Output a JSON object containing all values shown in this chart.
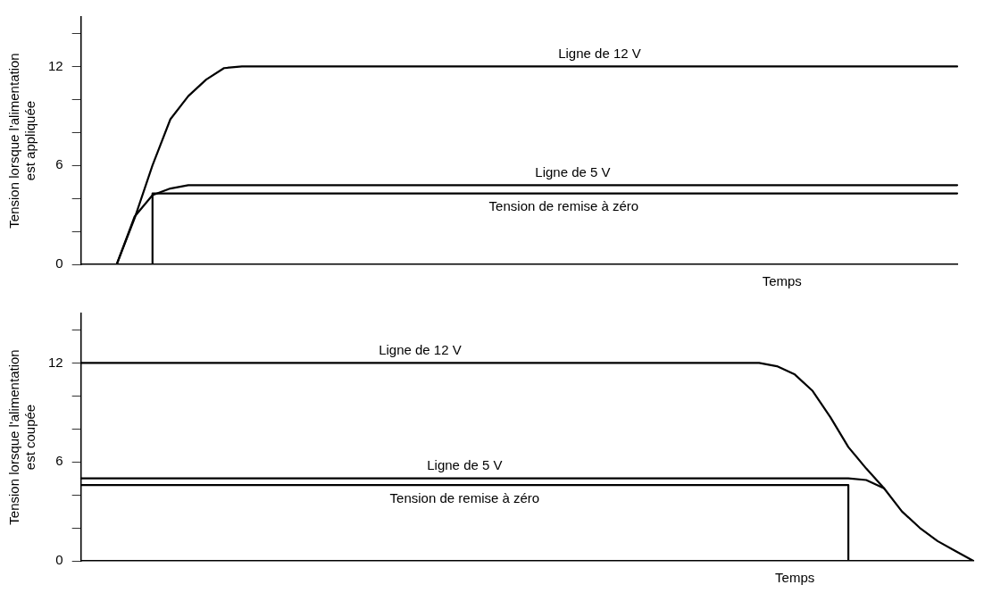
{
  "chart_data": [
    {
      "type": "line",
      "xlabel": "Temps",
      "ylabel": "Tension lorsque l'alimentation est appliquée",
      "ylim": [
        0,
        15
      ],
      "yticks": [
        0,
        {
          "value": 2,
          "label": null
        },
        {
          "value": 4,
          "label": null
        },
        6,
        {
          "value": 8,
          "label": null
        },
        {
          "value": 10,
          "label": null
        },
        12,
        {
          "value": 14,
          "label": null
        }
      ],
      "tick_labels": "y",
      "grid": false,
      "marker": "none",
      "line_style": "solid",
      "categories": [
        null,
        null,
        null,
        null,
        null,
        null,
        null,
        null,
        null,
        null,
        null,
        null,
        null,
        null,
        null,
        null,
        null,
        null,
        null,
        null,
        null,
        null,
        null,
        null,
        null,
        null,
        null,
        null,
        null,
        null,
        null,
        null,
        null,
        null,
        null,
        null,
        null,
        null,
        null,
        null,
        null,
        null,
        null,
        null,
        null,
        null,
        null,
        null,
        null,
        null
      ],
      "series": [
        {
          "name": "Ligne de 12 V",
          "color": "#000000",
          "values": [
            null,
            null,
            0,
            2.8,
            6.0,
            8.8,
            10.2,
            11.2,
            11.9,
            12,
            12,
            12,
            12,
            12,
            12,
            12,
            12,
            12,
            12,
            12,
            12,
            12,
            12,
            12,
            12,
            12,
            12,
            12,
            12,
            12,
            12,
            12,
            12,
            12,
            12,
            12,
            12,
            12,
            12,
            12,
            12,
            12,
            12,
            12,
            12,
            12,
            12,
            12,
            12,
            12
          ]
        },
        {
          "name": "Ligne de 5 V",
          "color": "#000000",
          "values": [
            null,
            null,
            0,
            2.9,
            4.2,
            4.6,
            4.8,
            4.8,
            4.8,
            4.8,
            4.8,
            4.8,
            4.8,
            4.8,
            4.8,
            4.8,
            4.8,
            4.8,
            4.8,
            4.8,
            4.8,
            4.8,
            4.8,
            4.8,
            4.8,
            4.8,
            4.8,
            4.8,
            4.8,
            4.8,
            4.8,
            4.8,
            4.8,
            4.8,
            4.8,
            4.8,
            4.8,
            4.8,
            4.8,
            4.8,
            4.8,
            4.8,
            4.8,
            4.8,
            4.8,
            4.8,
            4.8,
            4.8,
            4.8,
            4.8
          ]
        },
        {
          "name": "Tension de remise à zéro",
          "type": "step",
          "color": "#000000",
          "values": [
            null,
            null,
            null,
            null,
            0,
            4.3,
            4.3,
            4.3,
            4.3,
            4.3,
            4.3,
            4.3,
            4.3,
            4.3,
            4.3,
            4.3,
            4.3,
            4.3,
            4.3,
            4.3,
            4.3,
            4.3,
            4.3,
            4.3,
            4.3,
            4.3,
            4.3,
            4.3,
            4.3,
            4.3,
            4.3,
            4.3,
            4.3,
            4.3,
            4.3,
            4.3,
            4.3,
            4.3,
            4.3,
            4.3,
            4.3,
            4.3,
            4.3,
            4.3,
            4.3,
            4.3,
            4.3,
            4.3,
            4.3,
            4.3
          ]
        }
      ]
    },
    {
      "type": "line",
      "xlabel": "Temps",
      "ylabel": "Tension lorsque l'alimentation est coupée",
      "ylim": [
        0,
        15
      ],
      "yticks": [
        0,
        {
          "value": 2,
          "label": null
        },
        {
          "value": 4,
          "label": null
        },
        6,
        {
          "value": 8,
          "label": null
        },
        {
          "value": 10,
          "label": null
        },
        12,
        {
          "value": 14,
          "label": null
        }
      ],
      "tick_labels": "y",
      "grid": false,
      "marker": "none",
      "line_style": "solid",
      "categories": [
        null,
        null,
        null,
        null,
        null,
        null,
        null,
        null,
        null,
        null,
        null,
        null,
        null,
        null,
        null,
        null,
        null,
        null,
        null,
        null,
        null,
        null,
        null,
        null,
        null,
        null,
        null,
        null,
        null,
        null,
        null,
        null,
        null,
        null,
        null,
        null,
        null,
        null,
        null,
        null,
        null,
        null,
        null,
        null,
        null,
        null,
        null,
        null,
        null,
        null,
        null
      ],
      "series": [
        {
          "name": "Ligne de 12 V",
          "color": "#000000",
          "values": [
            12,
            12,
            12,
            12,
            12,
            12,
            12,
            12,
            12,
            12,
            12,
            12,
            12,
            12,
            12,
            12,
            12,
            12,
            12,
            12,
            12,
            12,
            12,
            12,
            12,
            12,
            12,
            12,
            12,
            12,
            12,
            12,
            12,
            12,
            12,
            12,
            12,
            12,
            12,
            11.8,
            11.3,
            10.3,
            8.7,
            6.9,
            5.6,
            4.4,
            3.0,
            2.0,
            1.2,
            0.6,
            0
          ]
        },
        {
          "name": "Ligne de 5 V",
          "color": "#000000",
          "values": [
            5.0,
            5.0,
            5.0,
            5.0,
            5.0,
            5.0,
            5.0,
            5.0,
            5.0,
            5.0,
            5.0,
            5.0,
            5.0,
            5.0,
            5.0,
            5.0,
            5.0,
            5.0,
            5.0,
            5.0,
            5.0,
            5.0,
            5.0,
            5.0,
            5.0,
            5.0,
            5.0,
            5.0,
            5.0,
            5.0,
            5.0,
            5.0,
            5.0,
            5.0,
            5.0,
            5.0,
            5.0,
            5.0,
            5.0,
            5.0,
            5.0,
            5.0,
            5.0,
            5.0,
            4.9,
            4.4,
            null,
            null,
            null,
            null,
            null
          ]
        },
        {
          "name": "Tension de remise à zéro",
          "type": "step",
          "color": "#000000",
          "values": [
            4.6,
            4.6,
            4.6,
            4.6,
            4.6,
            4.6,
            4.6,
            4.6,
            4.6,
            4.6,
            4.6,
            4.6,
            4.6,
            4.6,
            4.6,
            4.6,
            4.6,
            4.6,
            4.6,
            4.6,
            4.6,
            4.6,
            4.6,
            4.6,
            4.6,
            4.6,
            4.6,
            4.6,
            4.6,
            4.6,
            4.6,
            4.6,
            4.6,
            4.6,
            4.6,
            4.6,
            4.6,
            4.6,
            4.6,
            4.6,
            4.6,
            4.6,
            4.6,
            4.6,
            0,
            null,
            null,
            null,
            null,
            null,
            null
          ]
        }
      ]
    }
  ]
}
